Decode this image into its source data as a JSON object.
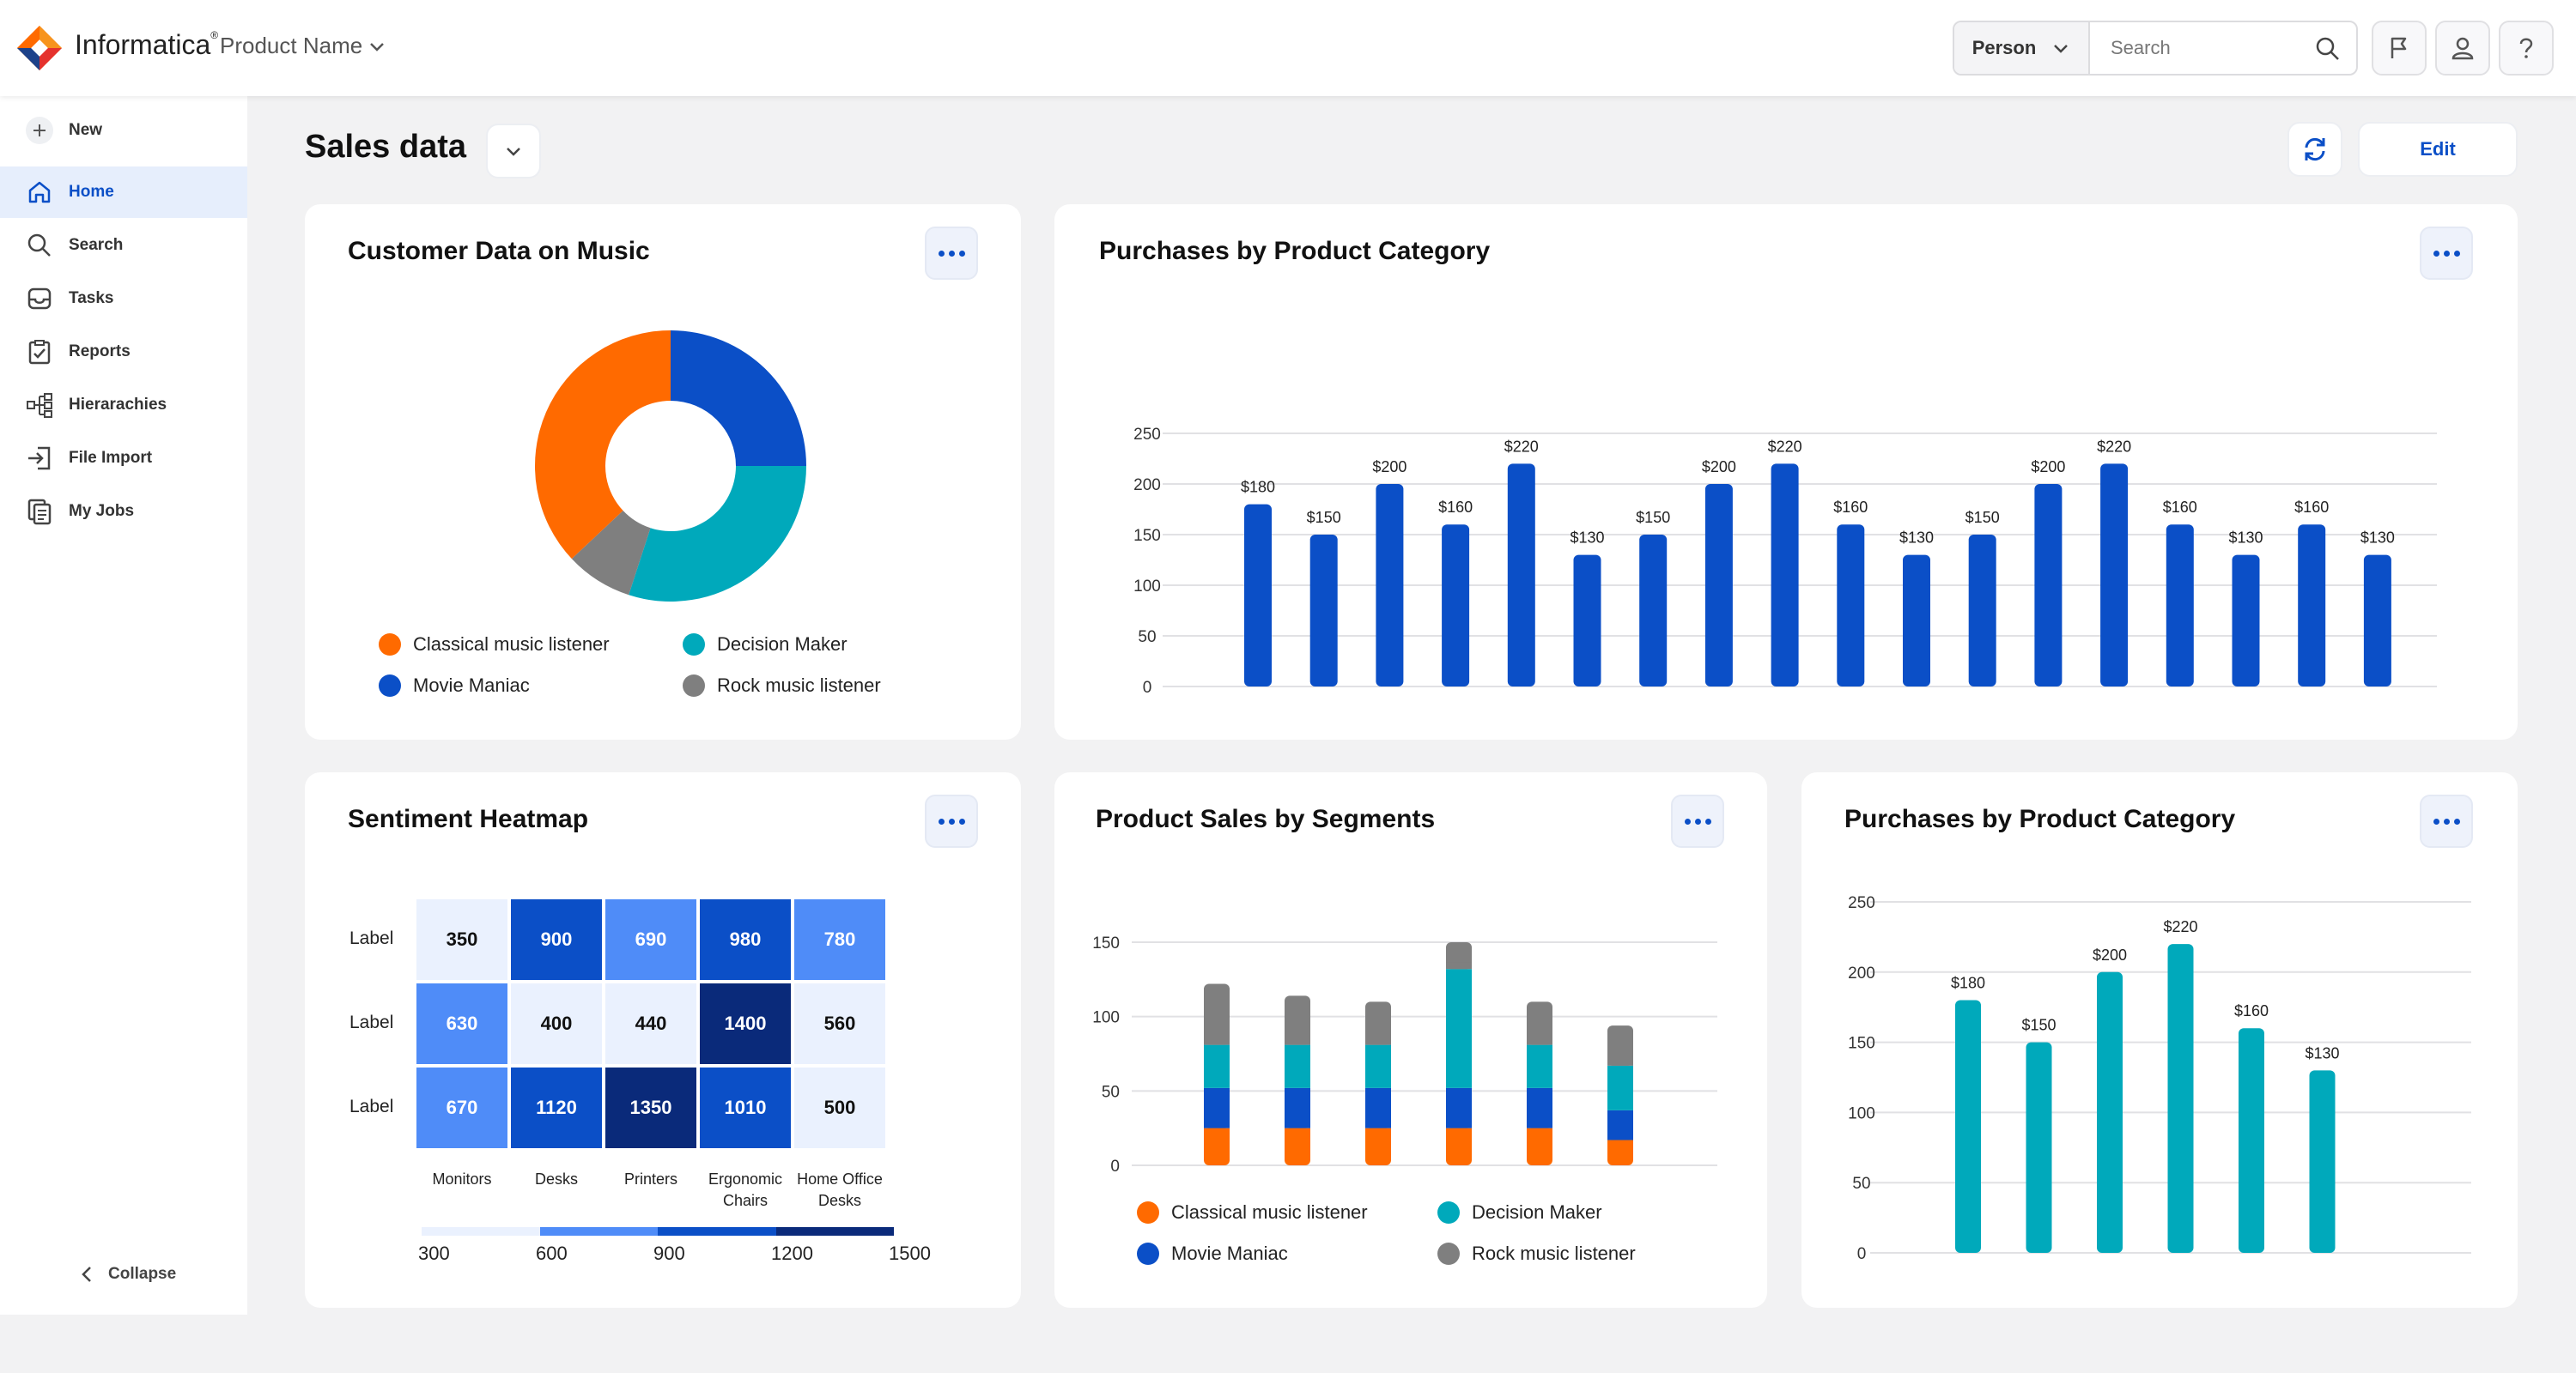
{
  "header": {
    "brand": "Informatica",
    "brand_mark": "®",
    "product_name": "Product Name",
    "person_select": "Person",
    "search_placeholder": "Search"
  },
  "sidebar": {
    "new_label": "New",
    "items": [
      {
        "label": "Home",
        "icon": "home-icon",
        "active": true
      },
      {
        "label": "Search",
        "icon": "search-icon",
        "active": false
      },
      {
        "label": "Tasks",
        "icon": "inbox-icon",
        "active": false
      },
      {
        "label": "Reports",
        "icon": "clipboard-check-icon",
        "active": false
      },
      {
        "label": "Hierarachies",
        "icon": "hierarchy-icon",
        "active": false
      },
      {
        "label": "File Import",
        "icon": "import-icon",
        "active": false
      },
      {
        "label": "My Jobs",
        "icon": "documents-icon",
        "active": false
      }
    ],
    "collapse_label": "Collapse"
  },
  "page": {
    "title": "Sales data",
    "edit_label": "Edit"
  },
  "colors": {
    "blue": "#0b4fc7",
    "teal": "#00a9bb",
    "orange": "#ff6a00",
    "gray": "#7f7f7f"
  },
  "legend_music": [
    {
      "label": "Classical music listener",
      "color": "#ff6a00"
    },
    {
      "label": "Decision Maker",
      "color": "#00a9bb"
    },
    {
      "label": "Movie Maniac",
      "color": "#0b4fc7"
    },
    {
      "label": "Rock music listener",
      "color": "#7f7f7f"
    }
  ],
  "cards": {
    "donut_title": "Customer Data on Music",
    "bar_title": "Purchases by Product Category",
    "heatmap_title": "Sentiment Heatmap",
    "stacked_title": "Product Sales by Segments",
    "bar2_title": "Purchases by Product Category"
  },
  "chart_data": [
    {
      "type": "pie",
      "title": "Customer Data on Music",
      "categories": [
        "Movie Maniac",
        "Decision Maker",
        "Rock music listener",
        "Classical music listener"
      ],
      "values": [
        25,
        30,
        8,
        37
      ]
    },
    {
      "type": "bar",
      "title": "Purchases by Product Category",
      "values": [
        180,
        150,
        200,
        160,
        220,
        130,
        150,
        200,
        220,
        160,
        130,
        150,
        200,
        220,
        160,
        130,
        160,
        130
      ],
      "data_labels": [
        "$180",
        "$150",
        "$200",
        "$160",
        "$220",
        "$130",
        "$150",
        "$200",
        "$220",
        "$160",
        "$130",
        "$150",
        "$200",
        "$220",
        "$160",
        "$130",
        "$160",
        "$130"
      ],
      "yticks": [
        0,
        50,
        100,
        150,
        200,
        250
      ],
      "ylim": [
        0,
        250
      ]
    },
    {
      "type": "heatmap",
      "title": "Sentiment Heatmap",
      "row_labels": [
        "Label",
        "Label",
        "Label"
      ],
      "col_labels": [
        "Monitors",
        "Desks",
        "Printers",
        "Ergonomic Chairs",
        "Home Office Desks"
      ],
      "values": [
        [
          350,
          900,
          690,
          980,
          780
        ],
        [
          630,
          400,
          440,
          1400,
          560
        ],
        [
          670,
          1120,
          1350,
          1010,
          500
        ]
      ],
      "scale_ticks": [
        "300",
        "600",
        "900",
        "1200",
        "1500"
      ],
      "scale_colors": [
        "#eaf1fe",
        "#4f8cf8",
        "#0b4fc7",
        "#0a2a7a"
      ]
    },
    {
      "type": "bar",
      "stacked": true,
      "title": "Product Sales by Segments",
      "series": [
        {
          "name": "Classical music listener",
          "color": "#ff6a00",
          "values": [
            25,
            25,
            25,
            25,
            25,
            17
          ]
        },
        {
          "name": "Movie Maniac",
          "color": "#0b4fc7",
          "values": [
            27,
            27,
            27,
            27,
            27,
            20
          ]
        },
        {
          "name": "Decision Maker",
          "color": "#00a9bb",
          "values": [
            29,
            29,
            29,
            80,
            29,
            30
          ]
        },
        {
          "name": "Rock music listener",
          "color": "#7f7f7f",
          "values": [
            41,
            33,
            29,
            18,
            29,
            27
          ]
        }
      ],
      "yticks": [
        0,
        50,
        100,
        150
      ],
      "ylim": [
        0,
        150
      ]
    },
    {
      "type": "bar",
      "title": "Purchases by Product Category",
      "values": [
        180,
        150,
        200,
        220,
        160,
        130
      ],
      "data_labels": [
        "$180",
        "$150",
        "$200",
        "$220",
        "$160",
        "$130"
      ],
      "yticks": [
        0,
        50,
        100,
        150,
        200,
        250
      ],
      "ylim": [
        0,
        250
      ]
    }
  ]
}
